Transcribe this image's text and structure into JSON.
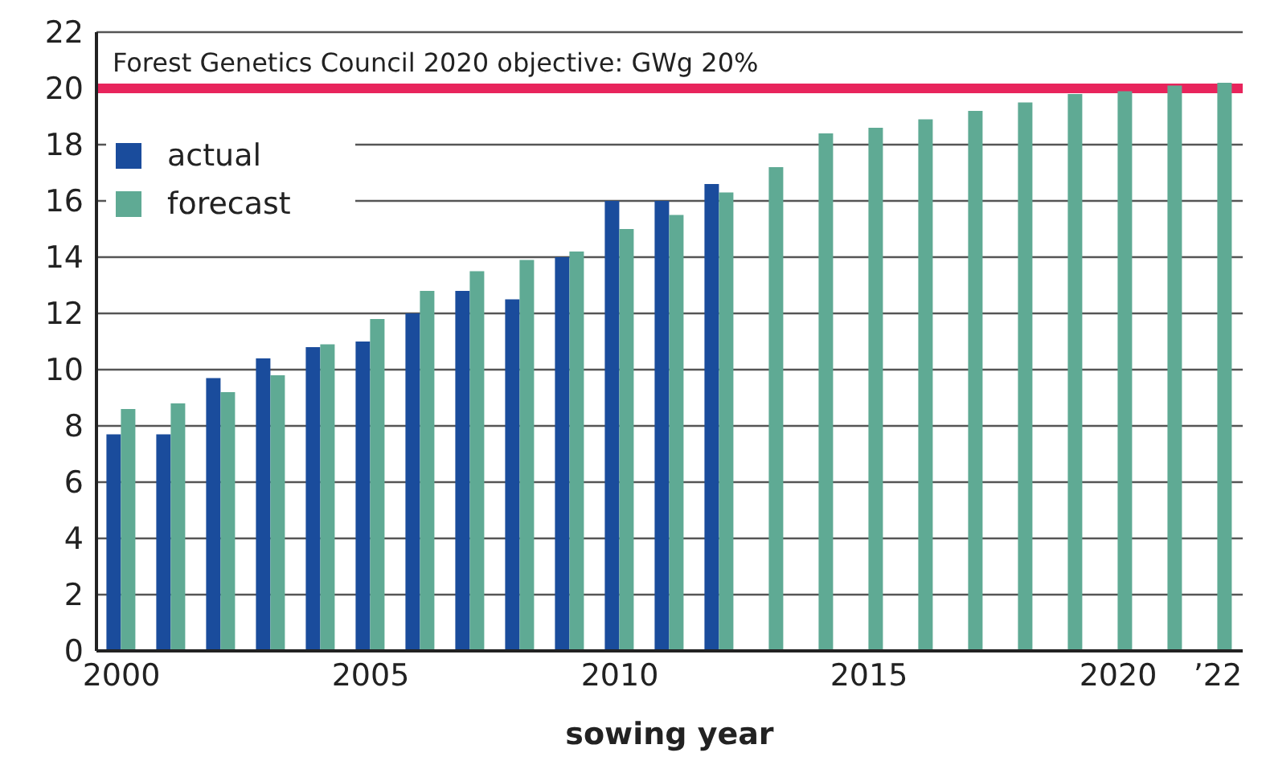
{
  "chart_data": {
    "type": "bar",
    "xlabel": "sowing year",
    "categories": [
      "2000",
      null,
      null,
      null,
      null,
      "2005",
      null,
      null,
      null,
      null,
      "2010",
      null,
      null,
      null,
      null,
      "2015",
      null,
      null,
      null,
      null,
      "2020",
      null,
      "’22"
    ],
    "series": [
      {
        "name": "actual",
        "color": "#1a4c9c",
        "values": [
          7.7,
          7.7,
          9.7,
          10.4,
          10.8,
          11.0,
          12.0,
          12.8,
          12.5,
          14.0,
          16.0,
          16.0,
          16.6,
          null,
          null,
          null,
          null,
          null,
          null,
          null,
          null,
          null,
          null
        ]
      },
      {
        "name": "forecast",
        "color": "#5faa94",
        "values": [
          8.6,
          8.8,
          9.2,
          9.8,
          10.9,
          11.8,
          12.8,
          13.5,
          13.9,
          14.2,
          15.0,
          15.5,
          16.3,
          17.2,
          18.4,
          18.6,
          18.9,
          19.2,
          19.5,
          19.8,
          19.9,
          20.1,
          20.2
        ]
      }
    ],
    "ylim": [
      0,
      22
    ],
    "yticks": [
      0,
      2,
      4,
      6,
      8,
      10,
      12,
      14,
      16,
      18,
      20,
      22
    ],
    "grid": "y",
    "legend": "top left",
    "ref_lines": [
      {
        "axis": "y",
        "value": 20,
        "label": "Forest Genetics Council 2020 objective: GWg 20%",
        "color": "#e8245c"
      }
    ]
  }
}
